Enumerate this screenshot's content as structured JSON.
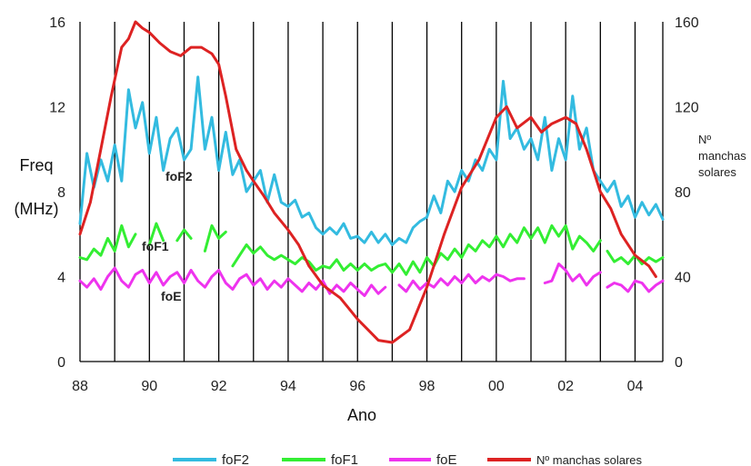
{
  "chart_data": {
    "type": "line",
    "xlabel": "Ano",
    "ylabel_line1": "Freq",
    "ylabel_line2": "(MHz)",
    "y2label_line1": "Nº",
    "y2label_line2": "manchas",
    "y2label_line3": "solares",
    "xlim": [
      1988,
      2004.8
    ],
    "ylim": [
      0,
      16
    ],
    "y2lim": [
      0,
      160
    ],
    "x_ticks": [
      "88",
      "90",
      "92",
      "94",
      "96",
      "98",
      "00",
      "02",
      "04"
    ],
    "y_ticks": [
      "0",
      "4",
      "8",
      "12",
      "16"
    ],
    "y2_ticks": [
      "0",
      "40",
      "80",
      "120",
      "160"
    ],
    "series_labels": {
      "foF2": "foF2",
      "foF1": "foF1",
      "foE": "foE"
    },
    "legend": [
      "foF2",
      "foF1",
      "foE",
      "Nº manchas solares"
    ],
    "colors": {
      "foF2": "#33bbe0",
      "foF1": "#33ee33",
      "foE": "#ee33ee",
      "sunspots": "#dd2222"
    },
    "series": [
      {
        "name": "foF2",
        "axis": "left",
        "points": [
          [
            1988.0,
            6.5
          ],
          [
            1988.2,
            9.8
          ],
          [
            1988.4,
            8.2
          ],
          [
            1988.6,
            9.5
          ],
          [
            1988.8,
            8.5
          ],
          [
            1989.0,
            10.2
          ],
          [
            1989.2,
            8.5
          ],
          [
            1989.4,
            12.8
          ],
          [
            1989.6,
            11.0
          ],
          [
            1989.8,
            12.2
          ],
          [
            1990.0,
            9.8
          ],
          [
            1990.2,
            11.5
          ],
          [
            1990.4,
            9.0
          ],
          [
            1990.6,
            10.5
          ],
          [
            1990.8,
            11.0
          ],
          [
            1991.0,
            9.5
          ],
          [
            1991.2,
            10.0
          ],
          [
            1991.4,
            13.4
          ],
          [
            1991.6,
            10.0
          ],
          [
            1991.8,
            11.5
          ],
          [
            1992.0,
            9.0
          ],
          [
            1992.2,
            10.8
          ],
          [
            1992.4,
            8.8
          ],
          [
            1992.6,
            9.5
          ],
          [
            1992.8,
            8.0
          ],
          [
            1993.0,
            8.5
          ],
          [
            1993.2,
            9.0
          ],
          [
            1993.4,
            7.5
          ],
          [
            1993.6,
            8.8
          ],
          [
            1993.8,
            7.5
          ],
          [
            1994.0,
            7.3
          ],
          [
            1994.2,
            7.6
          ],
          [
            1994.4,
            6.8
          ],
          [
            1994.6,
            7.0
          ],
          [
            1994.8,
            6.3
          ],
          [
            1995.0,
            6.0
          ],
          [
            1995.2,
            6.3
          ],
          [
            1995.4,
            6.0
          ],
          [
            1995.6,
            6.5
          ],
          [
            1995.8,
            5.8
          ],
          [
            1996.0,
            5.9
          ],
          [
            1996.2,
            5.6
          ],
          [
            1996.4,
            6.1
          ],
          [
            1996.6,
            5.6
          ],
          [
            1996.8,
            6.0
          ],
          [
            1997.0,
            5.5
          ],
          [
            1997.2,
            5.8
          ],
          [
            1997.4,
            5.6
          ],
          [
            1997.6,
            6.3
          ],
          [
            1997.8,
            6.6
          ],
          [
            1998.0,
            6.8
          ],
          [
            1998.2,
            7.8
          ],
          [
            1998.4,
            7.0
          ],
          [
            1998.6,
            8.5
          ],
          [
            1998.8,
            8.0
          ],
          [
            1999.0,
            9.0
          ],
          [
            1999.2,
            8.5
          ],
          [
            1999.4,
            9.5
          ],
          [
            1999.6,
            9.0
          ],
          [
            1999.8,
            10.0
          ],
          [
            2000.0,
            9.5
          ],
          [
            2000.2,
            13.2
          ],
          [
            2000.4,
            10.5
          ],
          [
            2000.6,
            11.0
          ],
          [
            2000.8,
            10.0
          ],
          [
            2001.0,
            10.5
          ],
          [
            2001.2,
            9.5
          ],
          [
            2001.4,
            11.5
          ],
          [
            2001.6,
            9.0
          ],
          [
            2001.8,
            10.5
          ],
          [
            2002.0,
            9.5
          ],
          [
            2002.2,
            12.5
          ],
          [
            2002.4,
            10.0
          ],
          [
            2002.6,
            11.0
          ],
          [
            2002.8,
            9.0
          ],
          [
            2003.0,
            8.5
          ],
          [
            2003.2,
            8.0
          ],
          [
            2003.4,
            8.5
          ],
          [
            2003.6,
            7.3
          ],
          [
            2003.8,
            7.8
          ],
          [
            2004.0,
            6.8
          ],
          [
            2004.2,
            7.5
          ],
          [
            2004.4,
            6.9
          ],
          [
            2004.6,
            7.4
          ],
          [
            2004.8,
            6.7
          ]
        ]
      },
      {
        "name": "foF1",
        "axis": "left",
        "points": [
          [
            1988.0,
            4.9
          ],
          [
            1988.2,
            4.8
          ],
          [
            1988.4,
            5.3
          ],
          [
            1988.6,
            5.0
          ],
          [
            1988.8,
            5.8
          ],
          [
            1989.0,
            5.2
          ],
          [
            1989.2,
            6.4
          ],
          [
            1989.4,
            5.4
          ],
          [
            1989.6,
            6.0
          ],
          null,
          [
            1990.0,
            5.5
          ],
          [
            1990.2,
            6.5
          ],
          [
            1990.4,
            5.7
          ],
          null,
          [
            1990.8,
            5.7
          ],
          [
            1991.0,
            6.2
          ],
          [
            1991.2,
            5.8
          ],
          null,
          [
            1991.6,
            5.2
          ],
          [
            1991.8,
            6.4
          ],
          [
            1992.0,
            5.8
          ],
          [
            1992.2,
            6.1
          ],
          null,
          [
            1992.4,
            4.5
          ],
          [
            1992.6,
            5.0
          ],
          [
            1992.8,
            5.5
          ],
          [
            1993.0,
            5.1
          ],
          [
            1993.2,
            5.4
          ],
          [
            1993.4,
            5.0
          ],
          [
            1993.6,
            4.8
          ],
          [
            1993.8,
            5.0
          ],
          [
            1994.0,
            4.8
          ],
          [
            1994.2,
            4.6
          ],
          [
            1994.4,
            4.9
          ],
          [
            1994.6,
            4.7
          ],
          [
            1994.8,
            4.3
          ],
          [
            1995.0,
            4.5
          ],
          [
            1995.2,
            4.4
          ],
          [
            1995.4,
            4.8
          ],
          [
            1995.6,
            4.3
          ],
          [
            1995.8,
            4.6
          ],
          [
            1996.0,
            4.3
          ],
          [
            1996.2,
            4.6
          ],
          [
            1996.4,
            4.3
          ],
          [
            1996.6,
            4.5
          ],
          [
            1996.8,
            4.6
          ],
          [
            1997.0,
            4.2
          ],
          [
            1997.2,
            4.6
          ],
          [
            1997.4,
            4.1
          ],
          [
            1997.6,
            4.7
          ],
          [
            1997.8,
            4.2
          ],
          [
            1998.0,
            4.9
          ],
          [
            1998.2,
            4.5
          ],
          [
            1998.4,
            5.1
          ],
          [
            1998.6,
            4.8
          ],
          [
            1998.8,
            5.3
          ],
          [
            1999.0,
            4.9
          ],
          [
            1999.2,
            5.5
          ],
          [
            1999.4,
            5.2
          ],
          [
            1999.6,
            5.7
          ],
          [
            1999.8,
            5.4
          ],
          [
            2000.0,
            5.9
          ],
          [
            2000.2,
            5.4
          ],
          [
            2000.4,
            6.0
          ],
          [
            2000.6,
            5.6
          ],
          [
            2000.8,
            6.3
          ],
          [
            2001.0,
            5.8
          ],
          [
            2001.2,
            6.3
          ],
          [
            2001.4,
            5.6
          ],
          [
            2001.6,
            6.4
          ],
          [
            2001.8,
            5.9
          ],
          [
            2002.0,
            6.4
          ],
          [
            2002.2,
            5.3
          ],
          [
            2002.4,
            5.9
          ],
          [
            2002.6,
            5.6
          ],
          [
            2002.8,
            5.2
          ],
          [
            2003.0,
            5.7
          ],
          null,
          [
            2003.2,
            5.2
          ],
          [
            2003.4,
            4.7
          ],
          [
            2003.6,
            4.9
          ],
          [
            2003.8,
            4.6
          ],
          [
            2004.0,
            5.0
          ],
          [
            2004.2,
            4.6
          ],
          [
            2004.4,
            4.9
          ],
          [
            2004.6,
            4.7
          ],
          [
            2004.8,
            4.9
          ]
        ]
      },
      {
        "name": "foE",
        "axis": "left",
        "points": [
          [
            1988.0,
            3.8
          ],
          [
            1988.2,
            3.5
          ],
          [
            1988.4,
            3.9
          ],
          [
            1988.6,
            3.4
          ],
          [
            1988.8,
            4.0
          ],
          [
            1989.0,
            4.4
          ],
          [
            1989.2,
            3.8
          ],
          [
            1989.4,
            3.5
          ],
          [
            1989.6,
            4.1
          ],
          [
            1989.8,
            4.3
          ],
          [
            1990.0,
            3.7
          ],
          [
            1990.2,
            4.2
          ],
          [
            1990.4,
            3.6
          ],
          [
            1990.6,
            4.0
          ],
          [
            1990.8,
            4.2
          ],
          [
            1991.0,
            3.7
          ],
          [
            1991.2,
            4.3
          ],
          [
            1991.4,
            3.8
          ],
          [
            1991.6,
            3.5
          ],
          [
            1991.8,
            4.0
          ],
          [
            1992.0,
            4.3
          ],
          [
            1992.2,
            3.7
          ],
          [
            1992.4,
            3.4
          ],
          [
            1992.6,
            3.9
          ],
          [
            1992.8,
            4.1
          ],
          [
            1993.0,
            3.6
          ],
          [
            1993.2,
            3.9
          ],
          [
            1993.4,
            3.4
          ],
          [
            1993.6,
            3.8
          ],
          [
            1993.8,
            3.5
          ],
          [
            1994.0,
            3.9
          ],
          [
            1994.2,
            3.6
          ],
          [
            1994.4,
            3.3
          ],
          [
            1994.6,
            3.7
          ],
          [
            1994.8,
            3.4
          ],
          [
            1995.0,
            3.8
          ],
          [
            1995.2,
            3.2
          ],
          [
            1995.4,
            3.6
          ],
          [
            1995.6,
            3.3
          ],
          [
            1995.8,
            3.7
          ],
          [
            1996.0,
            3.4
          ],
          [
            1996.2,
            3.1
          ],
          [
            1996.4,
            3.6
          ],
          [
            1996.6,
            3.2
          ],
          [
            1996.8,
            3.5
          ],
          null,
          [
            1997.2,
            3.6
          ],
          [
            1997.4,
            3.3
          ],
          [
            1997.6,
            3.8
          ],
          [
            1997.8,
            3.4
          ],
          [
            1998.0,
            3.7
          ],
          [
            1998.2,
            3.5
          ],
          [
            1998.4,
            3.9
          ],
          [
            1998.6,
            3.6
          ],
          [
            1998.8,
            4.0
          ],
          [
            1999.0,
            3.7
          ],
          [
            1999.2,
            4.1
          ],
          [
            1999.4,
            3.7
          ],
          [
            1999.6,
            4.0
          ],
          [
            1999.8,
            3.8
          ],
          [
            2000.0,
            4.1
          ],
          [
            2000.2,
            4.0
          ],
          [
            2000.4,
            3.8
          ],
          [
            2000.6,
            3.9
          ],
          [
            2000.8,
            3.9
          ],
          null,
          [
            2001.4,
            3.7
          ],
          [
            2001.6,
            3.8
          ],
          [
            2001.8,
            4.6
          ],
          [
            2002.0,
            4.3
          ],
          [
            2002.2,
            3.8
          ],
          [
            2002.4,
            4.1
          ],
          [
            2002.6,
            3.6
          ],
          [
            2002.8,
            4.0
          ],
          [
            2003.0,
            4.2
          ],
          null,
          [
            2003.2,
            3.5
          ],
          [
            2003.4,
            3.7
          ],
          [
            2003.6,
            3.6
          ],
          [
            2003.8,
            3.3
          ],
          [
            2004.0,
            3.8
          ],
          [
            2004.2,
            3.7
          ],
          [
            2004.4,
            3.3
          ],
          [
            2004.6,
            3.6
          ],
          [
            2004.8,
            3.8
          ]
        ]
      },
      {
        "name": "Nº manchas solares",
        "axis": "right",
        "points": [
          [
            1988.0,
            60
          ],
          [
            1988.3,
            75
          ],
          [
            1988.6,
            100
          ],
          [
            1988.9,
            125
          ],
          [
            1989.2,
            148
          ],
          [
            1989.4,
            152
          ],
          [
            1989.6,
            160
          ],
          [
            1989.8,
            157
          ],
          [
            1990.0,
            155
          ],
          [
            1990.3,
            150
          ],
          [
            1990.6,
            146
          ],
          [
            1990.9,
            144
          ],
          [
            1991.2,
            148
          ],
          [
            1991.5,
            148
          ],
          [
            1991.8,
            145
          ],
          [
            1992.0,
            140
          ],
          [
            1992.2,
            125
          ],
          [
            1992.5,
            100
          ],
          [
            1992.8,
            90
          ],
          [
            1993.0,
            85
          ],
          [
            1993.3,
            78
          ],
          [
            1993.6,
            70
          ],
          [
            1994.0,
            62
          ],
          [
            1994.3,
            55
          ],
          [
            1994.6,
            45
          ],
          [
            1995.0,
            36
          ],
          [
            1995.5,
            30
          ],
          [
            1996.0,
            20
          ],
          [
            1996.3,
            15
          ],
          [
            1996.6,
            10
          ],
          [
            1997.0,
            9
          ],
          [
            1997.5,
            15
          ],
          [
            1998.0,
            35
          ],
          [
            1998.5,
            60
          ],
          [
            1999.0,
            82
          ],
          [
            1999.5,
            95
          ],
          [
            2000.0,
            115
          ],
          [
            2000.3,
            120
          ],
          [
            2000.6,
            110
          ],
          [
            2001.0,
            115
          ],
          [
            2001.3,
            108
          ],
          [
            2001.6,
            112
          ],
          [
            2002.0,
            115
          ],
          [
            2002.3,
            112
          ],
          [
            2002.6,
            100
          ],
          [
            2003.0,
            80
          ],
          [
            2003.3,
            72
          ],
          [
            2003.6,
            60
          ],
          [
            2004.0,
            50
          ],
          [
            2004.4,
            45
          ],
          [
            2004.6,
            40
          ]
        ]
      }
    ],
    "grid": "vertical yearly lines"
  }
}
